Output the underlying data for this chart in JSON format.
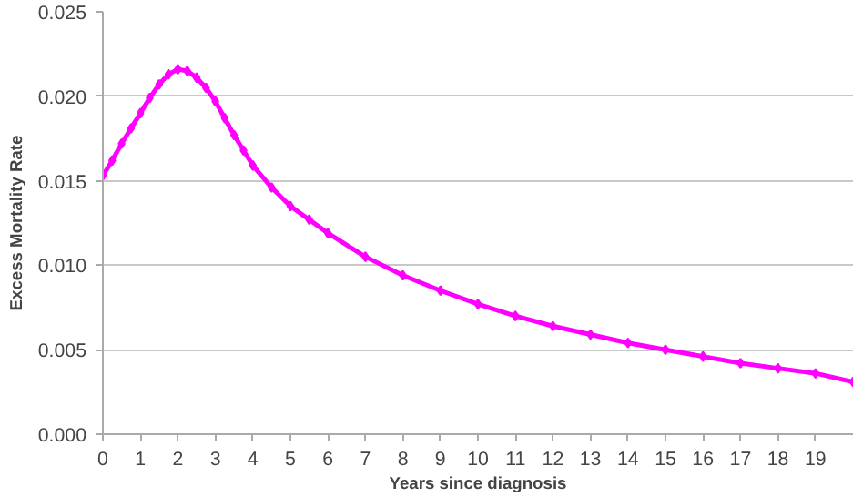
{
  "chart_data": {
    "type": "line",
    "xlabel": "Years since diagnosis",
    "ylabel": "Excess Mortality Rate",
    "x": [
      0,
      0.25,
      0.5,
      0.75,
      1,
      1.25,
      1.5,
      1.75,
      2,
      2.25,
      2.5,
      2.75,
      3,
      3.25,
      3.5,
      3.75,
      4,
      4.5,
      5,
      5.5,
      6,
      7,
      8,
      9,
      10,
      11,
      12,
      13,
      14,
      15,
      16,
      17,
      18,
      19,
      20
    ],
    "series": [
      {
        "color": "#ff00ff",
        "values": [
          0.0153,
          0.0162,
          0.0172,
          0.0181,
          0.019,
          0.0199,
          0.0207,
          0.0213,
          0.0216,
          0.0215,
          0.0211,
          0.0205,
          0.0197,
          0.0187,
          0.0177,
          0.0168,
          0.0159,
          0.0146,
          0.0135,
          0.0127,
          0.0119,
          0.0105,
          0.0094,
          0.0085,
          0.0077,
          0.007,
          0.0064,
          0.0059,
          0.0054,
          0.005,
          0.0046,
          0.0042,
          0.0039,
          0.0036,
          0.0031
        ]
      }
    ],
    "xlim": [
      0,
      20
    ],
    "xticks": [
      0,
      1,
      2,
      3,
      4,
      5,
      6,
      7,
      8,
      9,
      10,
      11,
      12,
      13,
      14,
      15,
      16,
      17,
      18,
      19
    ],
    "ylim": [
      0,
      0.025
    ],
    "yticks": [
      {
        "value": 0,
        "label": "0.000"
      },
      {
        "value": 0.005,
        "label": "0.005"
      },
      {
        "value": 0.01,
        "label": "0.010"
      },
      {
        "value": 0.015,
        "label": "0.015"
      },
      {
        "value": 0.02,
        "label": "0.020"
      },
      {
        "value": 0.025,
        "label": "0.025"
      }
    ],
    "grid": "y",
    "marker": "diamond",
    "line_style": "solid"
  }
}
